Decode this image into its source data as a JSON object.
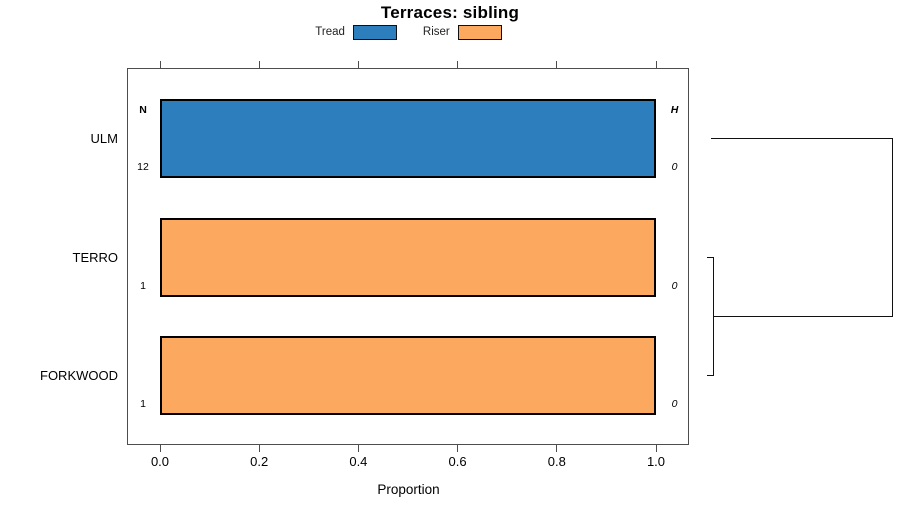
{
  "title": "Terraces: sibling",
  "legend": {
    "items": [
      {
        "label": "Tread",
        "color": "#2D7EBC"
      },
      {
        "label": "Riser",
        "color": "#FCA95F"
      }
    ]
  },
  "axis": {
    "xlabel": "Proportion",
    "xtick_labels": [
      "0.0",
      "0.2",
      "0.4",
      "0.6",
      "0.8",
      "1.0"
    ]
  },
  "annotations": {
    "n_header": "N",
    "h_header": "H"
  },
  "chart_data": {
    "type": "bar",
    "orientation": "horizontal",
    "title": "Terraces: sibling",
    "xlabel": "Proportion",
    "xlim": [
      0,
      1
    ],
    "xticks": [
      0,
      0.2,
      0.4,
      0.6,
      0.8,
      1.0
    ],
    "grid": false,
    "legend_position": "top",
    "categories": [
      "ULM",
      "TERRO",
      "FORKWOOD"
    ],
    "series": [
      {
        "name": "Tread",
        "color": "#2D7EBC"
      },
      {
        "name": "Riser",
        "color": "#FCA95F"
      }
    ],
    "bars": [
      {
        "category": "ULM",
        "series": "Tread",
        "proportion": 1.0,
        "n": "12",
        "h": "0"
      },
      {
        "category": "TERRO",
        "series": "Riser",
        "proportion": 1.0,
        "n": "1",
        "h": "0"
      },
      {
        "category": "FORKWOOD",
        "series": "Riser",
        "proportion": 1.0,
        "n": "1",
        "h": "0"
      }
    ],
    "dendrogram": {
      "side": "right",
      "merges": [
        {
          "members": [
            "TERRO",
            "FORKWOOD"
          ],
          "relative_height": 0.0
        },
        {
          "members": [
            "ULM",
            "TERRO+FORKWOOD"
          ],
          "relative_height": 1.0
        }
      ]
    }
  }
}
